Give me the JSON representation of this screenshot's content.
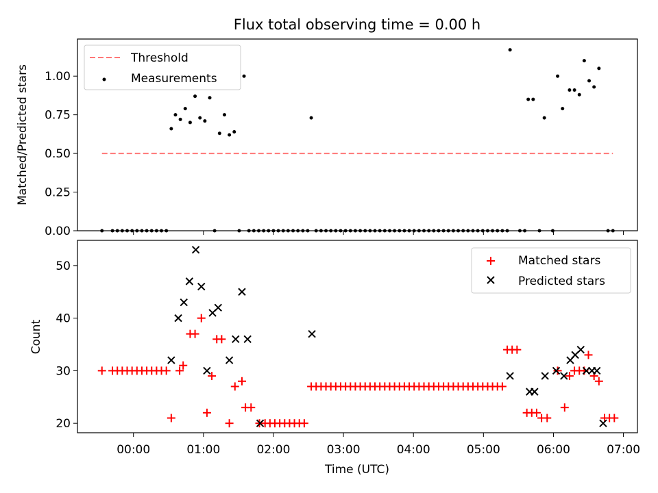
{
  "chart_data": [
    {
      "type": "scatter",
      "title": "Flux total observing time = 0.00 h",
      "xlabel": "",
      "ylabel": "Matched/Predicted stars",
      "xlim": [
        -0.8,
        7.2
      ],
      "ylim": [
        0,
        1.24
      ],
      "yticks": [
        0.0,
        0.25,
        0.5,
        0.75,
        1.0
      ],
      "ytick_labels": [
        "0.00",
        "0.25",
        "0.50",
        "0.75",
        "1.00"
      ],
      "threshold": {
        "name": "Threshold",
        "value": 0.5,
        "x": [
          -0.45,
          6.85
        ],
        "color": "#ff7777"
      },
      "legend": {
        "position": "top-left",
        "entries": [
          "Threshold",
          "Measurements"
        ]
      },
      "series": [
        {
          "name": "Measurements",
          "color": "#000000",
          "x": [
            -0.45,
            -0.3,
            -0.23,
            -0.16,
            -0.09,
            -0.02,
            0.05,
            0.12,
            0.19,
            0.26,
            0.33,
            0.4,
            0.47,
            0.54,
            0.6,
            0.67,
            0.74,
            0.81,
            0.88,
            0.95,
            1.02,
            1.09,
            1.16,
            1.23,
            1.3,
            1.37,
            1.44,
            1.51,
            1.58,
            1.65,
            1.72,
            1.79,
            1.86,
            1.93,
            2.0,
            2.07,
            2.14,
            2.21,
            2.28,
            2.35,
            2.42,
            2.49,
            2.54,
            2.61,
            2.68,
            2.75,
            2.82,
            2.89,
            2.96,
            3.03,
            3.1,
            3.17,
            3.24,
            3.31,
            3.38,
            3.45,
            3.52,
            3.59,
            3.66,
            3.73,
            3.8,
            3.87,
            3.94,
            4.01,
            4.08,
            4.15,
            4.22,
            4.29,
            4.36,
            4.43,
            4.5,
            4.57,
            4.64,
            4.71,
            4.78,
            4.85,
            4.92,
            4.99,
            5.06,
            5.13,
            5.2,
            5.27,
            5.34,
            5.38,
            5.52,
            5.59,
            5.64,
            5.71,
            5.8,
            5.87,
            5.99,
            6.06,
            6.13,
            6.23,
            6.3,
            6.37,
            6.44,
            6.51,
            6.58,
            6.65,
            6.78,
            6.85
          ],
          "y": [
            0,
            0,
            0,
            0,
            0,
            0,
            0,
            0,
            0,
            0,
            0,
            0,
            0,
            0.66,
            0.75,
            0.72,
            0.79,
            0.7,
            0.87,
            0.73,
            0.71,
            0.86,
            0,
            0.63,
            0.75,
            0.62,
            0.64,
            0,
            1.0,
            0,
            0,
            0,
            0,
            0,
            0,
            0,
            0,
            0,
            0,
            0,
            0,
            0,
            0.73,
            0,
            0,
            0,
            0,
            0,
            0,
            0,
            0,
            0,
            0,
            0,
            0,
            0,
            0,
            0,
            0,
            0,
            0,
            0,
            0,
            0,
            0,
            0,
            0,
            0,
            0,
            0,
            0,
            0,
            0,
            0,
            0,
            0,
            0,
            0,
            0,
            0,
            0,
            0,
            0,
            1.17,
            0,
            0,
            0.85,
            0.85,
            0,
            0.73,
            0,
            1.0,
            0.79,
            0.91,
            0.91,
            0.88,
            1.1,
            0.97,
            0.93,
            1.05,
            0,
            0
          ]
        }
      ]
    },
    {
      "type": "scatter",
      "title": "",
      "xlabel": "Time (UTC)",
      "ylabel": "Count",
      "xlim": [
        -0.8,
        7.2
      ],
      "ylim": [
        18.2,
        54.8
      ],
      "yticks": [
        20,
        30,
        40,
        50
      ],
      "ytick_labels": [
        "20",
        "30",
        "40",
        "50"
      ],
      "xticks": [
        0,
        1,
        2,
        3,
        4,
        5,
        6,
        7
      ],
      "xtick_labels": [
        "00:00",
        "01:00",
        "02:00",
        "03:00",
        "04:00",
        "05:00",
        "06:00",
        "07:00"
      ],
      "legend": {
        "position": "top-right",
        "entries": [
          "Matched stars",
          "Predicted stars"
        ]
      },
      "series": [
        {
          "name": "Matched stars",
          "marker": "plus",
          "color": "#ff0000",
          "x": [
            -0.45,
            -0.3,
            -0.23,
            -0.16,
            -0.09,
            -0.02,
            0.05,
            0.12,
            0.19,
            0.26,
            0.33,
            0.4,
            0.47,
            0.54,
            0.66,
            0.71,
            0.81,
            0.88,
            0.97,
            1.05,
            1.12,
            1.19,
            1.26,
            1.37,
            1.45,
            1.55,
            1.6,
            1.68,
            1.8,
            1.88,
            1.95,
            2.02,
            2.09,
            2.16,
            2.23,
            2.3,
            2.37,
            2.44,
            2.54,
            2.61,
            2.68,
            2.75,
            2.82,
            2.89,
            2.96,
            3.03,
            3.1,
            3.17,
            3.24,
            3.31,
            3.38,
            3.45,
            3.52,
            3.59,
            3.66,
            3.73,
            3.8,
            3.87,
            3.94,
            4.01,
            4.08,
            4.15,
            4.22,
            4.29,
            4.36,
            4.43,
            4.5,
            4.57,
            4.64,
            4.71,
            4.78,
            4.85,
            4.92,
            4.99,
            5.06,
            5.13,
            5.2,
            5.27,
            5.34,
            5.41,
            5.48,
            5.62,
            5.69,
            5.76,
            5.83,
            5.91,
            6.06,
            6.16,
            6.23,
            6.3,
            6.37,
            6.44,
            6.5,
            6.58,
            6.65,
            6.73,
            6.8,
            6.87
          ],
          "y": [
            30,
            30,
            30,
            30,
            30,
            30,
            30,
            30,
            30,
            30,
            30,
            30,
            30,
            21,
            30,
            31,
            37,
            37,
            40,
            22,
            29,
            36,
            36,
            20,
            27,
            28,
            23,
            23,
            20,
            20,
            20,
            20,
            20,
            20,
            20,
            20,
            20,
            20,
            27,
            27,
            27,
            27,
            27,
            27,
            27,
            27,
            27,
            27,
            27,
            27,
            27,
            27,
            27,
            27,
            27,
            27,
            27,
            27,
            27,
            27,
            27,
            27,
            27,
            27,
            27,
            27,
            27,
            27,
            27,
            27,
            27,
            27,
            27,
            27,
            27,
            27,
            27,
            27,
            34,
            34,
            34,
            22,
            22,
            22,
            21,
            21,
            30,
            23,
            29,
            30,
            30,
            30,
            33,
            29,
            28,
            21,
            21,
            21
          ]
        },
        {
          "name": "Predicted stars",
          "marker": "x",
          "color": "#000000",
          "x": [
            0.54,
            0.64,
            0.72,
            0.8,
            0.89,
            0.97,
            1.05,
            1.13,
            1.21,
            1.37,
            1.46,
            1.55,
            1.63,
            1.81,
            2.55,
            5.38,
            5.66,
            5.73,
            5.88,
            6.04,
            6.15,
            6.24,
            6.31,
            6.39,
            6.47,
            6.55,
            6.62,
            6.71
          ],
          "y": [
            32,
            40,
            43,
            47,
            53,
            46,
            30,
            41,
            42,
            32,
            36,
            45,
            36,
            20,
            37,
            29,
            26,
            26,
            29,
            30,
            29,
            32,
            33,
            34,
            30,
            30,
            30,
            20
          ]
        }
      ]
    }
  ]
}
